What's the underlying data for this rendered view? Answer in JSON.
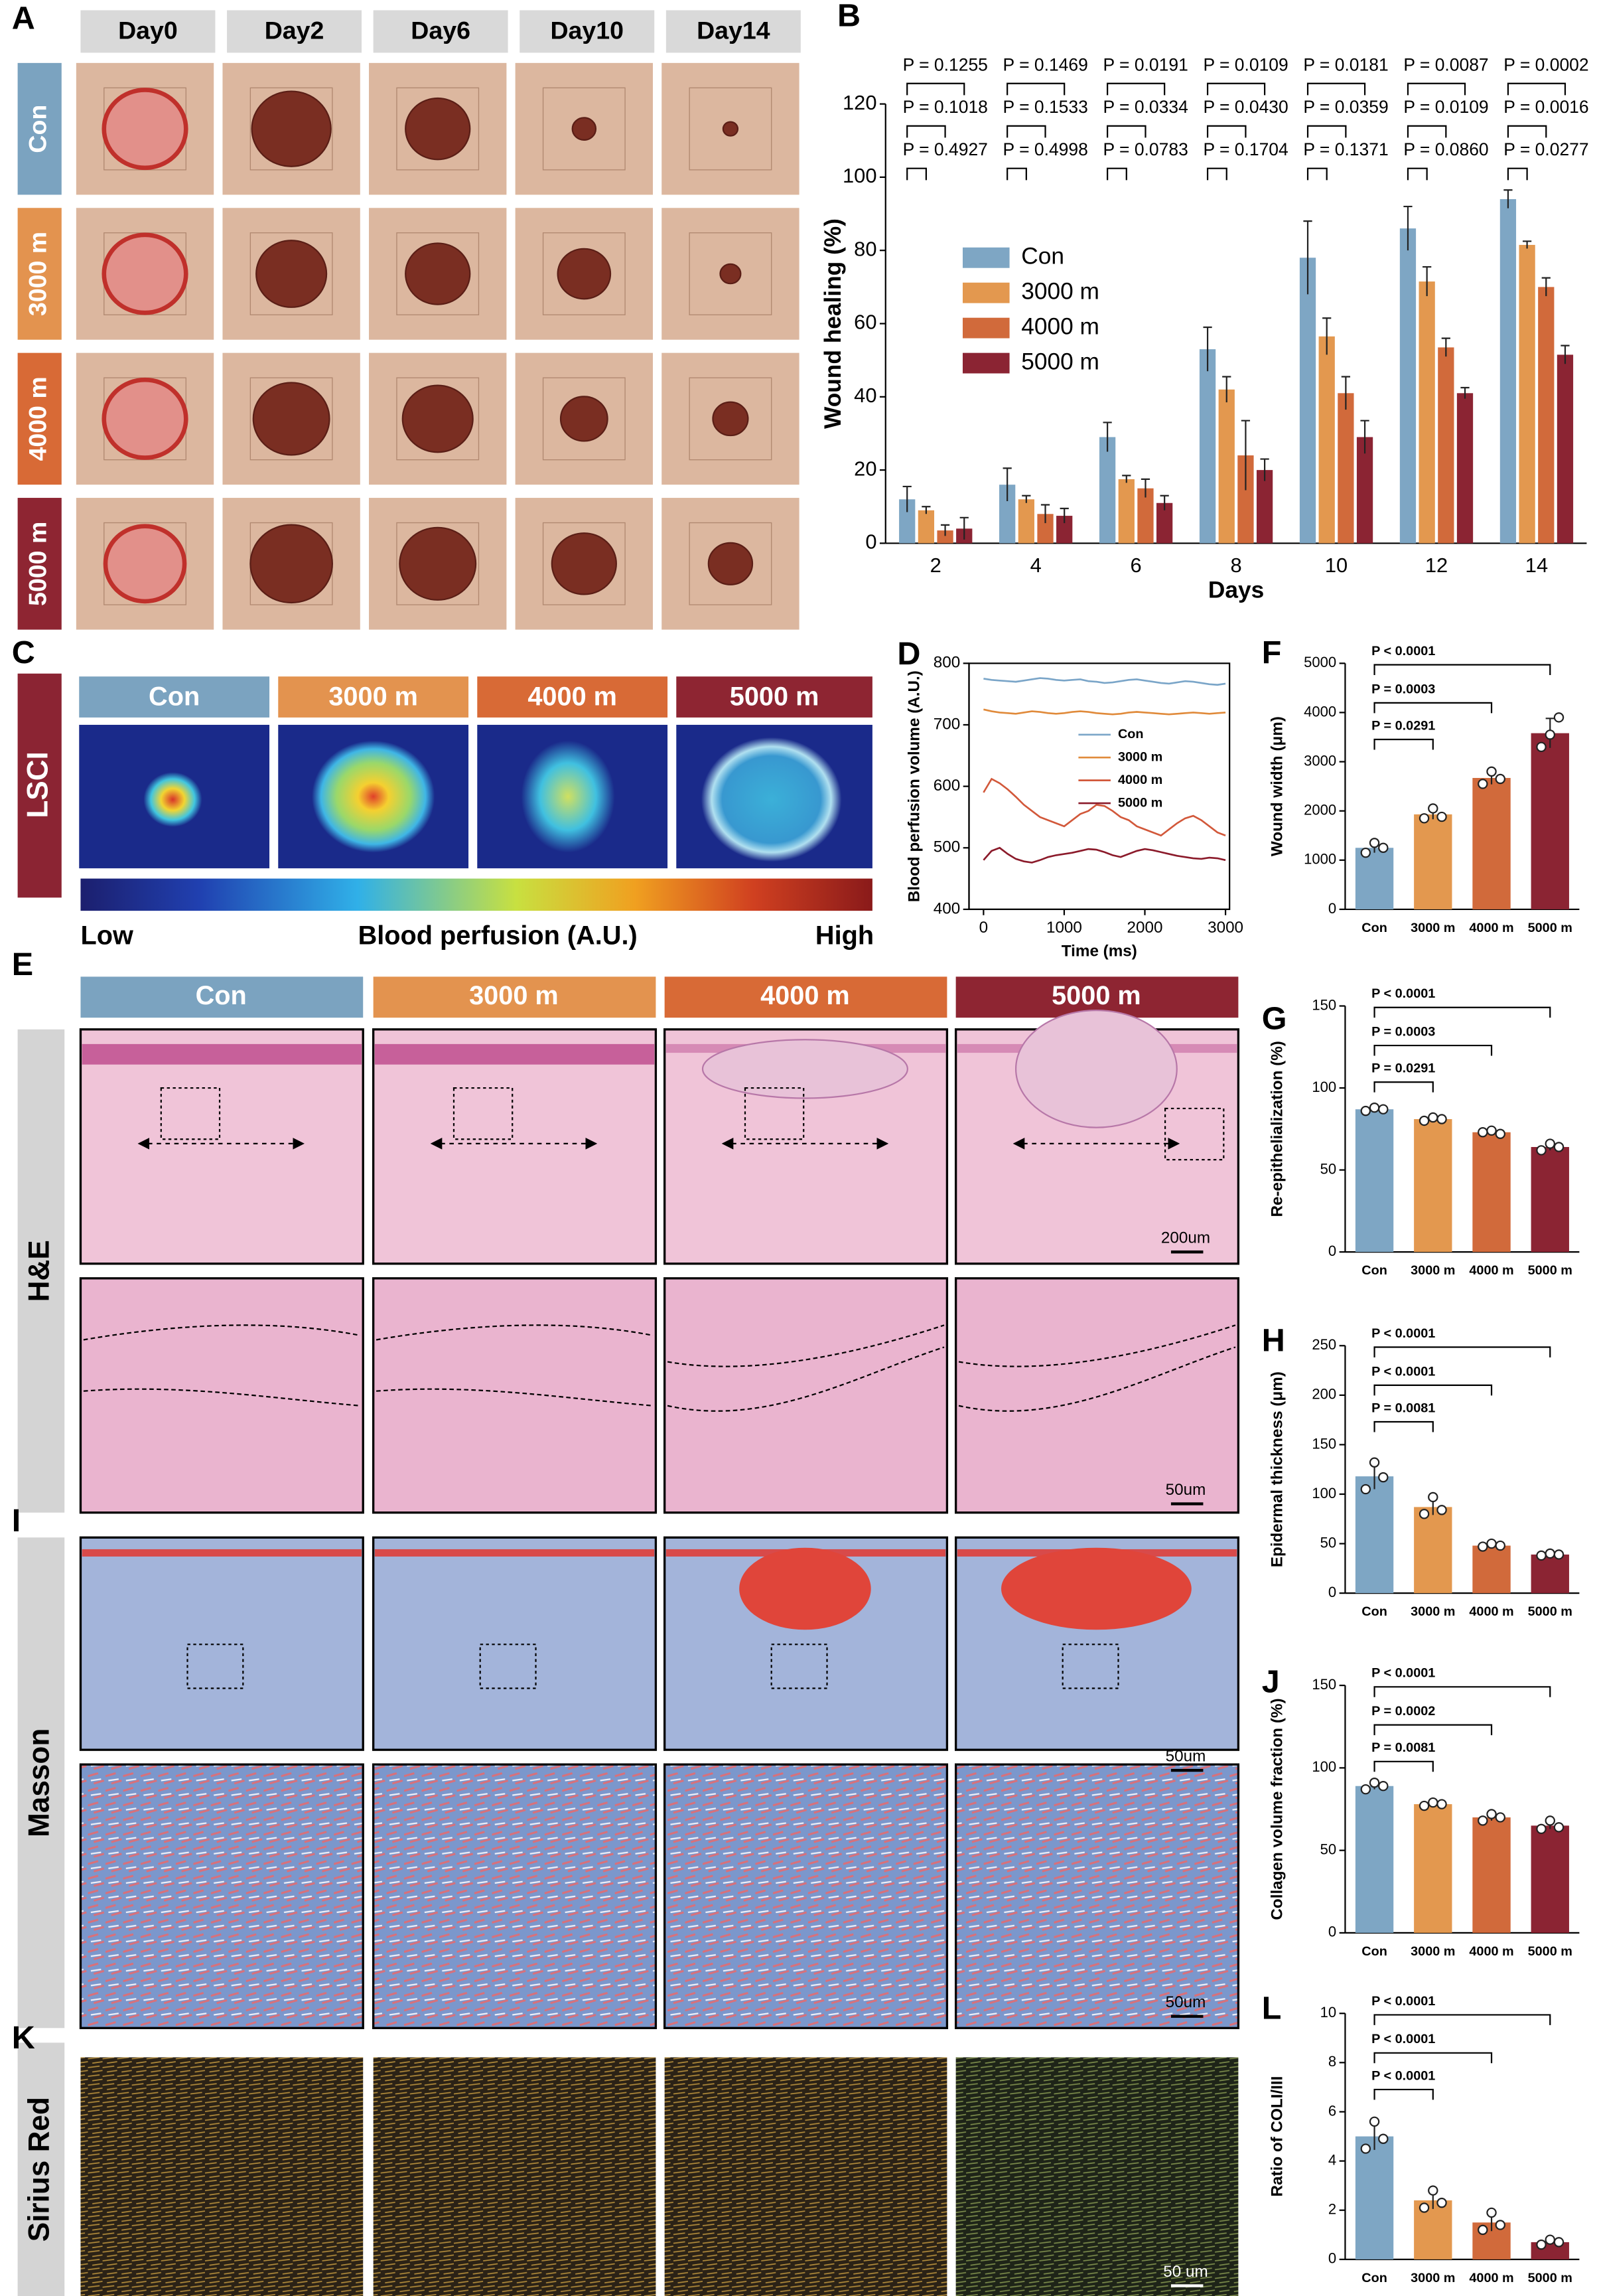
{
  "panel_labels": [
    "A",
    "B",
    "C",
    "D",
    "E",
    "F",
    "G",
    "H",
    "I",
    "J",
    "K",
    "L"
  ],
  "panel_A": {
    "columns": [
      "Day0",
      "Day2",
      "Day6",
      "Day10",
      "Day14"
    ],
    "rows": [
      "Con",
      "3000 m",
      "4000 m",
      "5000 m"
    ]
  },
  "panel_C": {
    "row_label": "LSCI",
    "columns": [
      "Con",
      "3000 m",
      "4000 m",
      "5000 m"
    ],
    "colorbar": {
      "low": "Low",
      "title": "Blood perfusion (A.U.)",
      "high": "High"
    }
  },
  "panel_E": {
    "columns": [
      "Con",
      "3000 m",
      "4000 m",
      "5000 m"
    ],
    "row_label": "H&E",
    "scale_bars": [
      "200um",
      "50um"
    ]
  },
  "panel_I": {
    "row_label": "Masson",
    "scale_bars": [
      "50um",
      "50um"
    ]
  },
  "panel_K": {
    "row_label": "Sirius Red",
    "scale_bar": "50 um"
  },
  "chart_data": [
    {
      "type": "bar",
      "x_label": "Days",
      "y_label": "Wound healing (%)",
      "categories": [
        "2",
        "4",
        "6",
        "8",
        "10",
        "12",
        "14"
      ],
      "series": [
        {
          "name": "Con",
          "color": "#7ea6c4",
          "values": [
            12,
            16,
            29,
            53,
            78,
            86,
            94
          ],
          "errors": [
            3.5,
            4.5,
            4,
            6,
            10,
            6,
            2.5
          ]
        },
        {
          "name": "3000 m",
          "color": "#e3984f",
          "values": [
            9,
            12,
            17.5,
            42,
            56.5,
            71.5,
            81.5
          ],
          "errors": [
            1,
            1,
            1,
            3.5,
            5,
            4,
            1
          ]
        },
        {
          "name": "4000 m",
          "color": "#d16a3b",
          "values": [
            3.5,
            8,
            15,
            24,
            41,
            53.5,
            70
          ],
          "errors": [
            1.5,
            2.5,
            2.5,
            9.5,
            4.5,
            2.5,
            2.5
          ]
        },
        {
          "name": "5000 m",
          "color": "#8b2433",
          "values": [
            4,
            7.5,
            11,
            20,
            29,
            41,
            51.5
          ],
          "errors": [
            3,
            2,
            2,
            3,
            4.5,
            1.5,
            2.5
          ]
        }
      ],
      "p_values": [
        [
          "P = 0.1255",
          "P = 0.1018",
          "P = 0.4927"
        ],
        [
          "P = 0.1469",
          "P = 0.1533",
          "P = 0.4998"
        ],
        [
          "P = 0.0191",
          "P = 0.0334",
          "P = 0.0783"
        ],
        [
          "P = 0.0109",
          "P = 0.0430",
          "P = 0.1704"
        ],
        [
          "P = 0.0181",
          "P = 0.0359",
          "P = 0.1371"
        ],
        [
          "P = 0.0087",
          "P = 0.0109",
          "P = 0.0860"
        ],
        [
          "P = 0.0002",
          "P = 0.0016",
          "P = 0.0277"
        ]
      ],
      "ylim": [
        0,
        120
      ],
      "yticks": [
        0,
        20,
        40,
        60,
        80,
        100,
        120
      ],
      "legend": "upper left"
    },
    {
      "type": "line",
      "x_label": "Time (ms)",
      "y_label": "Blood perfusion volume (A.U.)",
      "x": [
        0,
        100,
        200,
        300,
        400,
        500,
        600,
        700,
        800,
        900,
        1000,
        1100,
        1200,
        1300,
        1400,
        1500,
        1600,
        1700,
        1800,
        1900,
        2000,
        2100,
        2200,
        2300,
        2400,
        2500,
        2600,
        2700,
        2800,
        2900,
        3000
      ],
      "series": [
        {
          "name": "Con",
          "color": "#7aa5c8",
          "values": [
            775,
            773,
            772,
            771,
            770,
            772,
            774,
            776,
            775,
            773,
            772,
            773,
            774,
            771,
            770,
            768,
            769,
            771,
            773,
            774,
            772,
            770,
            768,
            767,
            769,
            771,
            770,
            768,
            766,
            765,
            767
          ]
        },
        {
          "name": "3000 m",
          "color": "#e08a3a",
          "values": [
            725,
            722,
            720,
            719,
            718,
            720,
            722,
            721,
            719,
            718,
            719,
            721,
            722,
            721,
            719,
            718,
            717,
            718,
            720,
            721,
            720,
            719,
            718,
            717,
            718,
            719,
            720,
            719,
            718,
            719,
            720
          ]
        },
        {
          "name": "4000 m",
          "color": "#d2583a",
          "values": [
            590,
            612,
            605,
            595,
            583,
            570,
            560,
            550,
            545,
            540,
            535,
            545,
            555,
            560,
            570,
            568,
            560,
            550,
            545,
            535,
            530,
            525,
            520,
            530,
            540,
            548,
            552,
            545,
            535,
            525,
            520
          ]
        },
        {
          "name": "5000 m",
          "color": "#8b1a2a",
          "values": [
            480,
            495,
            500,
            490,
            482,
            478,
            476,
            480,
            485,
            488,
            490,
            492,
            495,
            498,
            497,
            493,
            488,
            485,
            490,
            495,
            498,
            496,
            493,
            490,
            487,
            485,
            483,
            482,
            484,
            483,
            480
          ]
        }
      ],
      "xlim": [
        -180,
        3050
      ],
      "xticks": [
        0,
        1000,
        2000,
        3000
      ],
      "ylim": [
        400,
        800
      ],
      "yticks": [
        400,
        500,
        600,
        700,
        800
      ],
      "legend": "center"
    },
    {
      "type": "bar",
      "y_label": "Wound width (μm)",
      "categories": [
        "Con",
        "3000 m",
        "4000 m",
        "5000 m"
      ],
      "colors": [
        "#7ea6c4",
        "#e3984f",
        "#d16a3b",
        "#8b2433"
      ],
      "values": [
        1250,
        1930,
        2670,
        3580
      ],
      "errors": [
        100,
        100,
        130,
        300
      ],
      "points": [
        [
          1150,
          1350,
          1250
        ],
        [
          1850,
          2050,
          1880
        ],
        [
          2550,
          2800,
          2650
        ],
        [
          3300,
          3550,
          3900
        ]
      ],
      "p_values": [
        "P < 0.0001",
        "P = 0.0003",
        "P = 0.0291"
      ],
      "ylim": [
        0,
        5000
      ],
      "yticks": [
        0,
        1000,
        2000,
        3000,
        4000,
        5000
      ]
    },
    {
      "type": "bar",
      "y_label": "Re-epithelialization (%)",
      "categories": [
        "Con",
        "3000 m",
        "4000 m",
        "5000 m"
      ],
      "colors": [
        "#7ea6c4",
        "#e3984f",
        "#d16a3b",
        "#8b2433"
      ],
      "values": [
        87,
        81,
        73,
        64
      ],
      "errors": [
        1,
        1,
        1,
        2
      ],
      "points": [
        [
          86,
          88,
          87
        ],
        [
          80,
          82,
          81
        ],
        [
          73,
          74,
          72
        ],
        [
          62,
          66,
          64
        ]
      ],
      "p_values": [
        "P < 0.0001",
        "P = 0.0003",
        "P = 0.0291"
      ],
      "ylim": [
        0,
        150
      ],
      "yticks": [
        0,
        50,
        100,
        150
      ]
    },
    {
      "type": "bar",
      "y_label": "Epidermal thickness (μm)",
      "categories": [
        "Con",
        "3000 m",
        "4000 m",
        "5000 m"
      ],
      "colors": [
        "#7ea6c4",
        "#e3984f",
        "#d16a3b",
        "#8b2433"
      ],
      "values": [
        118,
        87,
        48,
        39
      ],
      "errors": [
        13,
        8,
        2,
        1
      ],
      "points": [
        [
          105,
          132,
          117
        ],
        [
          80,
          97,
          84
        ],
        [
          47,
          50,
          48
        ],
        [
          38,
          40,
          39
        ]
      ],
      "p_values": [
        "P < 0.0001",
        "P < 0.0001",
        "P = 0.0081"
      ],
      "ylim": [
        0,
        250
      ],
      "yticks": [
        0,
        50,
        100,
        150,
        200,
        250
      ]
    },
    {
      "type": "bar",
      "y_label": "Collagen volume fraction (%)",
      "categories": [
        "Con",
        "3000 m",
        "4000 m",
        "5000 m"
      ],
      "colors": [
        "#7ea6c4",
        "#e3984f",
        "#d16a3b",
        "#8b2433"
      ],
      "values": [
        89,
        78,
        70,
        65
      ],
      "errors": [
        2,
        1,
        2,
        2
      ],
      "points": [
        [
          87,
          91,
          89
        ],
        [
          77,
          79,
          78
        ],
        [
          68,
          72,
          70
        ],
        [
          63,
          68,
          64
        ]
      ],
      "p_values": [
        "P < 0.0001",
        "P = 0.0002",
        "P = 0.0081"
      ],
      "ylim": [
        0,
        150
      ],
      "yticks": [
        0,
        50,
        100,
        150
      ]
    },
    {
      "type": "bar",
      "y_label": "Ratio of COLI/III",
      "categories": [
        "Con",
        "3000 m",
        "4000 m",
        "5000 m"
      ],
      "colors": [
        "#7ea6c4",
        "#e3984f",
        "#d16a3b",
        "#8b2433"
      ],
      "values": [
        5.0,
        2.4,
        1.5,
        0.7
      ],
      "errors": [
        0.55,
        0.35,
        0.35,
        0.1
      ],
      "points": [
        [
          4.5,
          5.6,
          4.9
        ],
        [
          2.1,
          2.8,
          2.3
        ],
        [
          1.2,
          1.9,
          1.4
        ],
        [
          0.6,
          0.8,
          0.7
        ]
      ],
      "p_values": [
        "P < 0.0001",
        "P < 0.0001",
        "P < 0.0001"
      ],
      "ylim": [
        0,
        10
      ],
      "yticks": [
        0,
        2,
        4,
        6,
        8,
        10
      ]
    }
  ]
}
